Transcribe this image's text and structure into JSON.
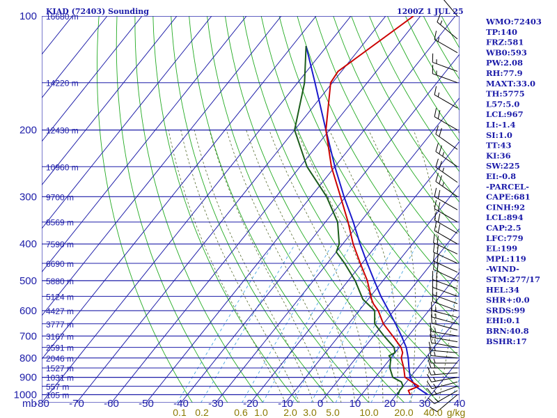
{
  "header": {
    "station": "KIAD (72403) Sounding",
    "time": "1200Z  1 JUL 25"
  },
  "stats": [
    "WMO:72403",
    "TP:140",
    "FRZ:581",
    "WB0:593",
    "PW:2.08",
    "RH:77.9",
    "MAXT:33.0",
    "TH:5775",
    "L57:5.0",
    "LCL:967",
    "LI:-1.4",
    "SI:1.0",
    "TT:43",
    "KI:36",
    "SW:225",
    "EI:-0.8",
    "-PARCEL-",
    "CAPE:681",
    "CINH:92",
    "LCL:894",
    "CAP:2.5",
    "LFC:779",
    "EL:199",
    "MPL:119",
    "-WIND-",
    "STM:277/17",
    "HEL:34",
    "SHR+:0.0",
    "SRDS:99",
    "EHI:0.1",
    "BRN:40.8",
    "BSHR:17"
  ],
  "colors": {
    "grid": "#1c1ca8",
    "dry_adiabat": "#22aa22",
    "moist_adiabat": "#556b2f",
    "mixing_ratio": "#3399dd",
    "temperature": "#cc0000",
    "dewpoint": "#1a5c1a",
    "parcel": "#1a1acc",
    "barb": "#000000",
    "mixing_ratio_label": "#8a7a00"
  },
  "chart_data": {
    "type": "skew-t",
    "pressure_axis": {
      "unit": "mb",
      "ticks": [
        100,
        200,
        300,
        400,
        500,
        600,
        700,
        800,
        900,
        1000
      ],
      "range": [
        100,
        1050
      ],
      "scale": "log"
    },
    "temperature_axis": {
      "unit": "C",
      "ticks": [
        -80,
        -70,
        -60,
        -50,
        -40,
        -30,
        -20,
        -10,
        0,
        10,
        20,
        30,
        40
      ],
      "range": [
        -80,
        40
      ]
    },
    "height_labels": [
      {
        "p": 100,
        "text": "16680 m"
      },
      {
        "p": 150,
        "text": "14220 m"
      },
      {
        "p": 200,
        "text": "12430 m"
      },
      {
        "p": 250,
        "text": "10960 m"
      },
      {
        "p": 300,
        "text": "9700 m"
      },
      {
        "p": 350,
        "text": "8569 m"
      },
      {
        "p": 400,
        "text": "7590 m"
      },
      {
        "p": 450,
        "text": "6690 m"
      },
      {
        "p": 500,
        "text": "5880 m"
      },
      {
        "p": 550,
        "text": "5124 m"
      },
      {
        "p": 600,
        "text": "4427 m"
      },
      {
        "p": 650,
        "text": "3777 m"
      },
      {
        "p": 700,
        "text": "3167 m"
      },
      {
        "p": 750,
        "text": "2591 m"
      },
      {
        "p": 800,
        "text": "2046 m"
      },
      {
        "p": 850,
        "text": "1527 m"
      },
      {
        "p": 900,
        "text": "1031 m"
      },
      {
        "p": 950,
        "text": "557 m"
      },
      {
        "p": 1000,
        "text": "105 m"
      }
    ],
    "mixing_ratio_labels": [
      "0.1",
      "0.2",
      "0.6",
      "1.0",
      "2.0",
      "3.0",
      "5.0",
      "10.0",
      "20.0",
      "40.0",
      "g/kg"
    ],
    "temperature_profile": [
      {
        "p": 1000,
        "t": 24.0
      },
      {
        "p": 975,
        "t": 22.5
      },
      {
        "p": 950,
        "t": 24.5
      },
      {
        "p": 925,
        "t": 21.5
      },
      {
        "p": 900,
        "t": 18.5
      },
      {
        "p": 850,
        "t": 16.0
      },
      {
        "p": 800,
        "t": 13.0
      },
      {
        "p": 775,
        "t": 12.2
      },
      {
        "p": 750,
        "t": 10.5
      },
      {
        "p": 700,
        "t": 5.5
      },
      {
        "p": 650,
        "t": 0.0
      },
      {
        "p": 600,
        "t": -4.5
      },
      {
        "p": 575,
        "t": -7.5
      },
      {
        "p": 560,
        "t": -9.0
      },
      {
        "p": 500,
        "t": -14.5
      },
      {
        "p": 450,
        "t": -20.5
      },
      {
        "p": 400,
        "t": -27.0
      },
      {
        "p": 350,
        "t": -33.5
      },
      {
        "p": 300,
        "t": -41.5
      },
      {
        "p": 250,
        "t": -51.0
      },
      {
        "p": 200,
        "t": -61.0
      },
      {
        "p": 150,
        "t": -70.5
      },
      {
        "p": 140,
        "t": -71.0
      },
      {
        "p": 100,
        "t": -62.0
      }
    ],
    "dewpoint_profile": [
      {
        "p": 1000,
        "t": 20.5
      },
      {
        "p": 975,
        "t": 20.0
      },
      {
        "p": 950,
        "t": 20.0
      },
      {
        "p": 925,
        "t": 18.5
      },
      {
        "p": 900,
        "t": 15.0
      },
      {
        "p": 850,
        "t": 12.0
      },
      {
        "p": 800,
        "t": 10.0
      },
      {
        "p": 790,
        "t": 9.0
      },
      {
        "p": 775,
        "t": 10.0
      },
      {
        "p": 750,
        "t": 8.5
      },
      {
        "p": 700,
        "t": 3.0
      },
      {
        "p": 650,
        "t": -2.5
      },
      {
        "p": 600,
        "t": -5.5
      },
      {
        "p": 560,
        "t": -11.5
      },
      {
        "p": 500,
        "t": -18.0
      },
      {
        "p": 450,
        "t": -25.0
      },
      {
        "p": 420,
        "t": -30.0
      },
      {
        "p": 400,
        "t": -31.0
      },
      {
        "p": 350,
        "t": -36.5
      },
      {
        "p": 300,
        "t": -45.5
      },
      {
        "p": 250,
        "t": -58.0
      },
      {
        "p": 200,
        "t": -70.0
      },
      {
        "p": 150,
        "t": -78.0
      },
      {
        "p": 120,
        "t": -86.0
      }
    ],
    "parcel_profile": [
      {
        "p": 1000,
        "t": 29.0
      },
      {
        "p": 950,
        "t": 23.5
      },
      {
        "p": 900,
        "t": 20.0
      },
      {
        "p": 850,
        "t": 17.5
      },
      {
        "p": 800,
        "t": 15.0
      },
      {
        "p": 750,
        "t": 12.0
      },
      {
        "p": 700,
        "t": 8.0
      },
      {
        "p": 650,
        "t": 3.5
      },
      {
        "p": 600,
        "t": -1.5
      },
      {
        "p": 550,
        "t": -7.0
      },
      {
        "p": 500,
        "t": -12.5
      },
      {
        "p": 450,
        "t": -18.5
      },
      {
        "p": 400,
        "t": -25.0
      },
      {
        "p": 350,
        "t": -32.0
      },
      {
        "p": 300,
        "t": -40.5
      },
      {
        "p": 250,
        "t": -50.0
      },
      {
        "p": 200,
        "t": -61.0
      },
      {
        "p": 150,
        "t": -75.0
      },
      {
        "p": 120,
        "t": -86.0
      }
    ],
    "wind_barbs": [
      {
        "p": 1000,
        "dir": 230,
        "spd": 10
      },
      {
        "p": 975,
        "dir": 240,
        "spd": 15
      },
      {
        "p": 950,
        "dir": 250,
        "spd": 15
      },
      {
        "p": 925,
        "dir": 255,
        "spd": 15
      },
      {
        "p": 900,
        "dir": 260,
        "spd": 15
      },
      {
        "p": 875,
        "dir": 265,
        "spd": 15
      },
      {
        "p": 850,
        "dir": 270,
        "spd": 15
      },
      {
        "p": 825,
        "dir": 270,
        "spd": 15
      },
      {
        "p": 800,
        "dir": 275,
        "spd": 15
      },
      {
        "p": 775,
        "dir": 275,
        "spd": 15
      },
      {
        "p": 750,
        "dir": 280,
        "spd": 15
      },
      {
        "p": 725,
        "dir": 280,
        "spd": 15
      },
      {
        "p": 700,
        "dir": 280,
        "spd": 15
      },
      {
        "p": 675,
        "dir": 285,
        "spd": 15
      },
      {
        "p": 650,
        "dir": 285,
        "spd": 15
      },
      {
        "p": 625,
        "dir": 285,
        "spd": 15
      },
      {
        "p": 600,
        "dir": 290,
        "spd": 15
      },
      {
        "p": 575,
        "dir": 290,
        "spd": 15
      },
      {
        "p": 550,
        "dir": 290,
        "spd": 20
      },
      {
        "p": 525,
        "dir": 290,
        "spd": 20
      },
      {
        "p": 500,
        "dir": 295,
        "spd": 20
      },
      {
        "p": 475,
        "dir": 295,
        "spd": 20
      },
      {
        "p": 450,
        "dir": 295,
        "spd": 20
      },
      {
        "p": 425,
        "dir": 295,
        "spd": 20
      },
      {
        "p": 400,
        "dir": 300,
        "spd": 20
      },
      {
        "p": 375,
        "dir": 300,
        "spd": 20
      },
      {
        "p": 350,
        "dir": 300,
        "spd": 20
      },
      {
        "p": 325,
        "dir": 300,
        "spd": 20
      },
      {
        "p": 300,
        "dir": 305,
        "spd": 25
      },
      {
        "p": 275,
        "dir": 305,
        "spd": 25
      },
      {
        "p": 250,
        "dir": 305,
        "spd": 25
      },
      {
        "p": 225,
        "dir": 305,
        "spd": 20
      },
      {
        "p": 200,
        "dir": 300,
        "spd": 20
      },
      {
        "p": 175,
        "dir": 300,
        "spd": 15
      },
      {
        "p": 150,
        "dir": 290,
        "spd": 15
      },
      {
        "p": 140,
        "dir": 290,
        "spd": 15
      },
      {
        "p": 125,
        "dir": 300,
        "spd": 15
      },
      {
        "p": 115,
        "dir": 310,
        "spd": 15
      },
      {
        "p": 100,
        "dir": 320,
        "spd": 15
      }
    ]
  }
}
